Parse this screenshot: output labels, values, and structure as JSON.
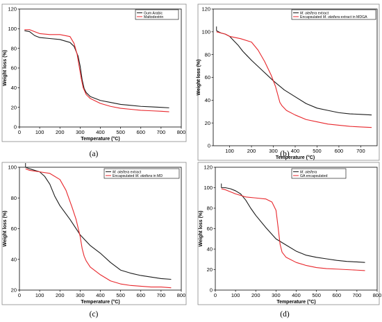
{
  "colors": {
    "black_series": "#1a1a1a",
    "red_series": "#e8262b"
  },
  "chart_data": [
    {
      "type": "line",
      "caption": "(a)",
      "xlabel": "Temperature (°C)",
      "ylabel": "Weight loss (%)",
      "xlim": [
        0,
        800
      ],
      "ylim": [
        0,
        120
      ],
      "xticks": [
        0,
        100,
        200,
        300,
        400,
        500,
        600,
        700,
        800
      ],
      "yticks": [
        0,
        20,
        40,
        60,
        80,
        100,
        120
      ],
      "legend": "top-right",
      "series": [
        {
          "name": "Gum Arabic",
          "color": "black_series",
          "x": [
            25,
            50,
            75,
            100,
            150,
            200,
            250,
            270,
            290,
            300,
            310,
            320,
            330,
            350,
            400,
            450,
            500,
            550,
            600,
            650,
            700,
            740
          ],
          "y": [
            98,
            97,
            93,
            91,
            90,
            89,
            86,
            82,
            72,
            62,
            48,
            39,
            35,
            31,
            27,
            25,
            23,
            22,
            21,
            20.5,
            20,
            19.5
          ]
        },
        {
          "name": "Maltodextrin",
          "color": "red_series",
          "x": [
            25,
            50,
            75,
            100,
            150,
            200,
            250,
            270,
            285,
            295,
            305,
            315,
            330,
            350,
            400,
            450,
            500,
            550,
            600,
            650,
            700,
            740
          ],
          "y": [
            99,
            99,
            97,
            95,
            94,
            94,
            92,
            85,
            74,
            62,
            50,
            40,
            33,
            29,
            24,
            21,
            19,
            18,
            17,
            16.5,
            16,
            15.5
          ]
        }
      ]
    },
    {
      "type": "line",
      "caption": "(b)",
      "xlabel": "Temperature (°C)",
      "ylabel": "Weight loss (%)",
      "xlim": [
        25,
        775
      ],
      "ylim": [
        0,
        120
      ],
      "xticks": [
        100,
        200,
        300,
        400,
        500,
        600,
        700
      ],
      "yticks": [
        0,
        20,
        40,
        60,
        80,
        100,
        120
      ],
      "legend": "top-right",
      "series": [
        {
          "name": "M. oleifera extract",
          "color": "black_series",
          "x": [
            40,
            60,
            80,
            100,
            120,
            140,
            160,
            180,
            200,
            250,
            300,
            350,
            400,
            450,
            500,
            550,
            600,
            650,
            700,
            750
          ],
          "y": [
            101,
            99,
            98,
            96,
            92,
            88,
            83,
            79,
            75,
            66,
            57,
            49,
            43,
            37,
            33,
            31,
            29,
            28,
            27.5,
            27
          ]
        },
        {
          "name": "Encapsulated M. oleifera extract in MDGA",
          "color": "red_series",
          "x": [
            40,
            60,
            80,
            100,
            150,
            200,
            230,
            260,
            290,
            310,
            320,
            330,
            340,
            360,
            400,
            450,
            500,
            550,
            600,
            650,
            700,
            750
          ],
          "y": [
            100,
            99,
            98,
            96,
            94,
            91,
            84,
            74,
            62,
            52,
            45,
            38,
            35,
            31,
            27,
            23,
            21,
            19,
            18,
            17,
            16.5,
            16
          ]
        }
      ]
    },
    {
      "type": "line",
      "caption": "(c)",
      "xlabel": "Temperature (°C)",
      "ylabel": "Weight loss (%)",
      "xlim": [
        0,
        800
      ],
      "ylim": [
        20,
        100
      ],
      "xticks": [
        0,
        100,
        200,
        300,
        400,
        500,
        600,
        700,
        800
      ],
      "yticks": [
        20,
        40,
        60,
        80,
        100
      ],
      "legend": "top-right",
      "series": [
        {
          "name": "M. oleifera extract",
          "color": "black_series",
          "x": [
            30,
            50,
            75,
            100,
            125,
            150,
            175,
            200,
            250,
            300,
            350,
            400,
            450,
            500,
            550,
            600,
            650,
            700,
            750
          ],
          "y": [
            100,
            99,
            98,
            97,
            94,
            89,
            81,
            75,
            66,
            56,
            49,
            44,
            38,
            33,
            31,
            29.5,
            28.5,
            27.5,
            27
          ]
        },
        {
          "name": "Encapsulated M. oleifera in MD",
          "color": "red_series",
          "x": [
            30,
            50,
            100,
            150,
            200,
            230,
            260,
            280,
            300,
            310,
            320,
            330,
            350,
            400,
            450,
            500,
            550,
            600,
            650,
            700,
            750
          ],
          "y": [
            99,
            98,
            97,
            96,
            92,
            85,
            74,
            66,
            55,
            47,
            42,
            39,
            35,
            30,
            26,
            24,
            23,
            22.5,
            22,
            22,
            21.5
          ]
        }
      ]
    },
    {
      "type": "line",
      "caption": "(d)",
      "xlabel": "Temperature (°C)",
      "ylabel": "Weight loss (%)",
      "xlim": [
        0,
        800
      ],
      "ylim": [
        0,
        120
      ],
      "xticks": [
        0,
        100,
        200,
        300,
        400,
        500,
        600,
        700,
        800
      ],
      "yticks": [
        0,
        20,
        40,
        60,
        80,
        100,
        120
      ],
      "legend": "top-right",
      "series": [
        {
          "name": "M. oleifera",
          "color": "black_series",
          "x": [
            30,
            50,
            75,
            100,
            125,
            150,
            175,
            200,
            250,
            300,
            350,
            400,
            450,
            500,
            550,
            600,
            650,
            700,
            740
          ],
          "y": [
            100,
            100,
            99,
            97,
            94,
            88,
            80,
            73,
            61,
            50,
            44,
            38,
            34,
            32,
            30.5,
            29,
            28,
            27.5,
            27
          ]
        },
        {
          "name": "GA encapsulated",
          "color": "red_series",
          "x": [
            30,
            50,
            100,
            150,
            200,
            250,
            280,
            300,
            310,
            320,
            330,
            350,
            400,
            450,
            500,
            550,
            600,
            650,
            700,
            740
          ],
          "y": [
            99,
            98,
            94,
            91,
            90,
            89,
            86,
            78,
            62,
            45,
            37,
            32,
            27,
            24,
            22,
            21,
            20.5,
            20,
            19.5,
            19
          ]
        }
      ]
    }
  ]
}
